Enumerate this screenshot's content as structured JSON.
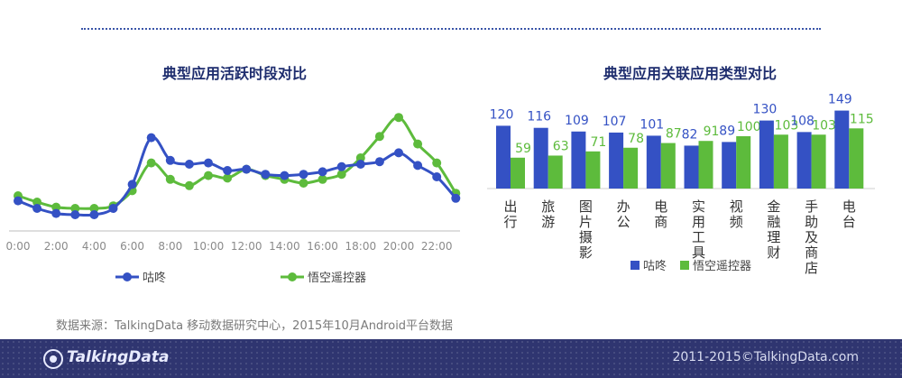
{
  "chart_data": [
    {
      "type": "line",
      "title": "典型应用活跃时段对比",
      "x": [
        0,
        1,
        2,
        3,
        4,
        5,
        6,
        7,
        8,
        9,
        10,
        11,
        12,
        13,
        14,
        15,
        16,
        17,
        18,
        19,
        20,
        21,
        22,
        23
      ],
      "x_tick_labels": [
        "0:00",
        "2:00",
        "4:00",
        "6:00",
        "8:00",
        "10:00",
        "12:00",
        "14:00",
        "16:00",
        "18:00",
        "20:00",
        "22:00"
      ],
      "series": [
        {
          "name": "咕咚",
          "color": "#3451c4",
          "values": [
            16,
            10,
            6,
            5,
            5,
            10,
            29,
            66,
            48,
            45,
            46,
            40,
            41,
            37,
            36,
            37,
            39,
            43,
            45,
            47,
            54,
            44,
            35,
            18
          ]
        },
        {
          "name": "悟空遥控器",
          "color": "#5dbb3c",
          "values": [
            20,
            15,
            11,
            10,
            10,
            12,
            24,
            46,
            33,
            28,
            36,
            34,
            41,
            36,
            33,
            30,
            33,
            37,
            50,
            67,
            82,
            61,
            46,
            22
          ]
        }
      ],
      "ylim": [
        0,
        100
      ],
      "grid": false,
      "legend_position": "bottom"
    },
    {
      "type": "bar",
      "title": "典型应用关联应用类型对比",
      "categories": [
        "出行",
        "旅游",
        "图片摄影",
        "办公",
        "电商",
        "实用工具",
        "视频",
        "金融理财",
        "手助及商店",
        "电台"
      ],
      "series": [
        {
          "name": "咕咚",
          "color": "#3451c4",
          "values": [
            120,
            116,
            109,
            107,
            101,
            82,
            89,
            130,
            108,
            149
          ]
        },
        {
          "name": "悟空遥控器",
          "color": "#5dbb3c",
          "values": [
            59,
            63,
            71,
            78,
            87,
            91,
            100,
            103,
            103,
            115
          ]
        }
      ],
      "legend_position": "bottom"
    }
  ],
  "source_text": "数据来源：TalkingData 移动数据研究中心，2015年10月Android平台数据",
  "footer": {
    "logo_text": "TalkingData",
    "copyright": "2011-2015©TalkingData.com"
  },
  "colors": {
    "footer_bg": "#2f3570",
    "title": "#1e2d6e"
  }
}
